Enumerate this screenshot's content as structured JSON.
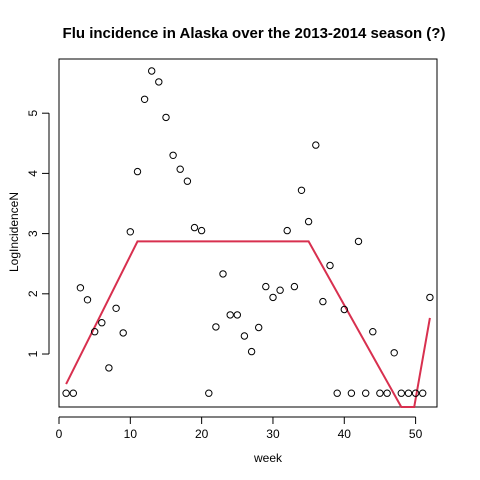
{
  "chart_data": {
    "type": "scatter",
    "title": "Flu incidence in Alaska over the 2013-2014 season (?)",
    "xlabel": "week",
    "ylabel": "LogIncidenceN",
    "xlim": [
      0,
      53
    ],
    "ylim": [
      0.12,
      5.9
    ],
    "x_ticks": [
      0,
      10,
      20,
      30,
      40,
      50
    ],
    "y_ticks": [
      1,
      2,
      3,
      4,
      5
    ],
    "grid": false,
    "legend": "none",
    "series": [
      {
        "type": "scatter",
        "color": "#000000",
        "x": [
          1,
          2,
          3,
          4,
          5,
          6,
          7,
          8,
          9,
          10,
          11,
          12,
          13,
          14,
          15,
          16,
          17,
          18,
          19,
          20,
          21,
          22,
          23,
          24,
          25,
          26,
          27,
          28,
          29,
          30,
          31,
          32,
          33,
          34,
          35,
          36,
          37,
          38,
          39,
          40,
          41,
          42,
          43,
          44,
          45,
          46,
          47,
          48,
          49,
          50,
          51,
          52
        ],
        "y": [
          0.35,
          0.35,
          2.1,
          1.9,
          1.37,
          1.52,
          0.77,
          1.76,
          1.35,
          3.03,
          4.03,
          5.23,
          5.7,
          5.52,
          4.93,
          4.3,
          4.07,
          3.87,
          3.1,
          3.05,
          0.35,
          1.45,
          2.33,
          1.65,
          1.65,
          1.3,
          1.04,
          1.44,
          2.12,
          1.94,
          2.06,
          3.05,
          2.12,
          3.72,
          3.2,
          4.47,
          1.87,
          2.47,
          0.35,
          1.74,
          0.35,
          2.87,
          0.35,
          1.37,
          0.35,
          0.35,
          1.02,
          0.35,
          0.35,
          0.35,
          0.35,
          1.94
        ]
      },
      {
        "type": "line",
        "color": "#d8304f",
        "x": [
          1,
          11,
          35,
          48,
          49.8,
          52
        ],
        "y": [
          0.5,
          2.87,
          2.87,
          0.12,
          0.12,
          1.6
        ]
      }
    ]
  }
}
